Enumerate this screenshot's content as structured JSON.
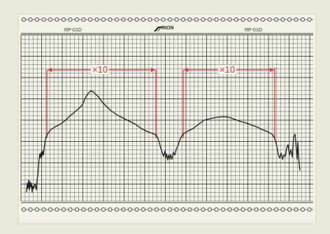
{
  "chart_header": {
    "left_label": "RP-01D",
    "brand": "RION",
    "right_label": "RP-01D"
  },
  "markers": [
    {
      "label": "×10"
    },
    {
      "label": "×10"
    }
  ],
  "colors": {
    "paper": "#f4f1e8",
    "grid": "#2d2d2d",
    "trace": "#1e1e1e",
    "marker": "#e53935"
  }
}
